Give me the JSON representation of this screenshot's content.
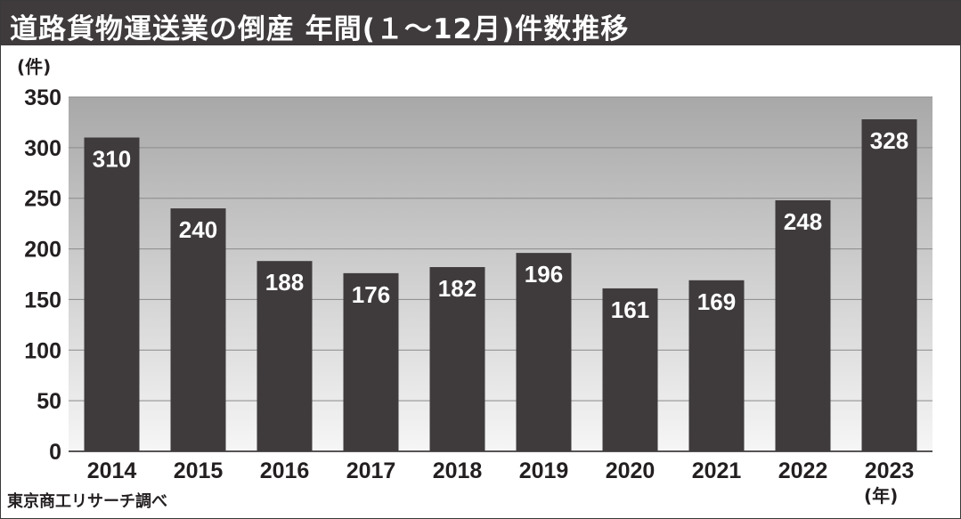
{
  "title": "道路貨物運送業の倒産 年間(１～12月)件数推移",
  "source": "東京商工リサーチ調べ",
  "colors": {
    "bar": "#3f3b3c",
    "title_bar": "#3f3b3c",
    "label": "#ffffff",
    "axis_text": "#231f20"
  },
  "chart_data": {
    "type": "bar",
    "title": "道路貨物運送業の倒産 年間(１～12月)件数推移",
    "ylabel": "(件)",
    "xlabel": "(年)",
    "ylim": [
      0,
      350
    ],
    "yticks": [
      0,
      50,
      100,
      150,
      200,
      250,
      300,
      350
    ],
    "grid": true,
    "categories": [
      "2014",
      "2015",
      "2016",
      "2017",
      "2018",
      "2019",
      "2020",
      "2021",
      "2022",
      "2023"
    ],
    "values": [
      310,
      240,
      188,
      176,
      182,
      196,
      161,
      169,
      248,
      328
    ]
  }
}
